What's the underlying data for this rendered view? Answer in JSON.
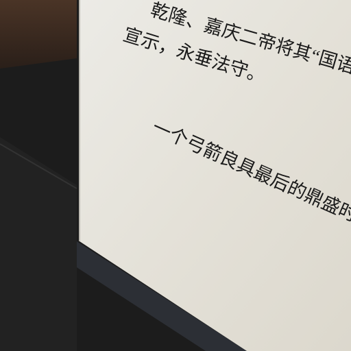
{
  "panel": {
    "lines": [
      "乾隆、嘉庆二帝将其“国语骑射",
      "宣示，永垂法守。",
      "一个弓箭良具最后的鼎盛时代"
    ]
  }
}
